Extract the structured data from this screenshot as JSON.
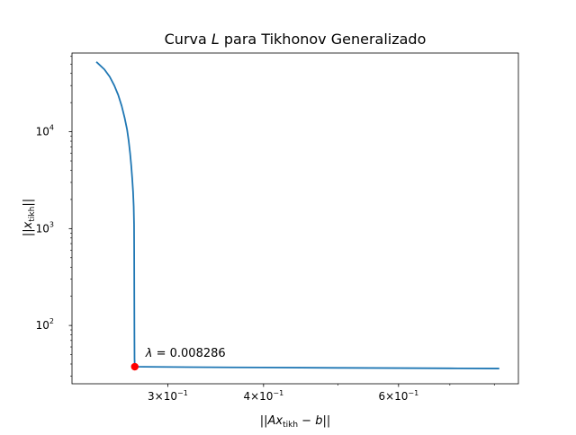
{
  "chart_data": {
    "type": "line",
    "title_parts": {
      "pre": "Curva ",
      "italic": "L",
      "post": " para Tikhonov Generalizado"
    },
    "xlabel_parts": {
      "open": "||",
      "main": "Ax",
      "sub": "tikh",
      "rest": " − ",
      "var": "b",
      "close": "||"
    },
    "ylabel_parts": {
      "open": "||",
      "main": "x",
      "sub": "tikh",
      "close": "||"
    },
    "x_scale": "log",
    "y_scale": "log",
    "xlim": [
      0.225,
      0.86
    ],
    "ylim": [
      25,
      65000
    ],
    "x_ticks": [
      {
        "value": 0.3,
        "mant": "3×10",
        "exp": "−1"
      },
      {
        "value": 0.4,
        "mant": "4×10",
        "exp": "−1"
      },
      {
        "value": 0.6,
        "mant": "6×10",
        "exp": "−1"
      }
    ],
    "x_minor_ticks": [
      0.5,
      0.7,
      0.8
    ],
    "y_ticks": [
      {
        "value": 100,
        "mant": "10",
        "exp": "2"
      },
      {
        "value": 1000,
        "mant": "10",
        "exp": "3"
      },
      {
        "value": 10000,
        "mant": "10",
        "exp": "4"
      }
    ],
    "y_minor_ticks": [
      30,
      40,
      50,
      60,
      70,
      80,
      90,
      200,
      300,
      400,
      500,
      600,
      700,
      800,
      900,
      2000,
      3000,
      4000,
      5000,
      6000,
      7000,
      8000,
      9000,
      20000,
      30000,
      40000,
      50000,
      60000
    ],
    "series": [
      {
        "color": "#1f77b4",
        "points": [
          [
            0.2425,
            52000
          ],
          [
            0.248,
            44000
          ],
          [
            0.252,
            37000
          ],
          [
            0.2555,
            30000
          ],
          [
            0.2585,
            24000
          ],
          [
            0.2612,
            18500
          ],
          [
            0.2635,
            14000
          ],
          [
            0.2655,
            10500
          ],
          [
            0.2668,
            8000
          ],
          [
            0.2679,
            6000
          ],
          [
            0.2688,
            4500
          ],
          [
            0.2696,
            3300
          ],
          [
            0.2703,
            2400
          ],
          [
            0.2708,
            1700
          ],
          [
            0.2711,
            1100
          ],
          [
            0.2712,
            600
          ],
          [
            0.2713,
            200
          ],
          [
            0.2714,
            80
          ],
          [
            0.2715,
            45
          ],
          [
            0.2717,
            37.5
          ],
          [
            0.28,
            37.4
          ],
          [
            0.32,
            37.1
          ],
          [
            0.4,
            36.8
          ],
          [
            0.5,
            36.5
          ],
          [
            0.6,
            36.3
          ],
          [
            0.7,
            36.1
          ],
          [
            0.81,
            35.9
          ]
        ]
      }
    ],
    "highlight": {
      "x": 0.2717,
      "y": 37.5,
      "color": "#ff0000",
      "label_symbol": "λ",
      "label_value": " = 0.008286"
    },
    "colors": {
      "axes": "#000000",
      "background": "#ffffff"
    }
  }
}
